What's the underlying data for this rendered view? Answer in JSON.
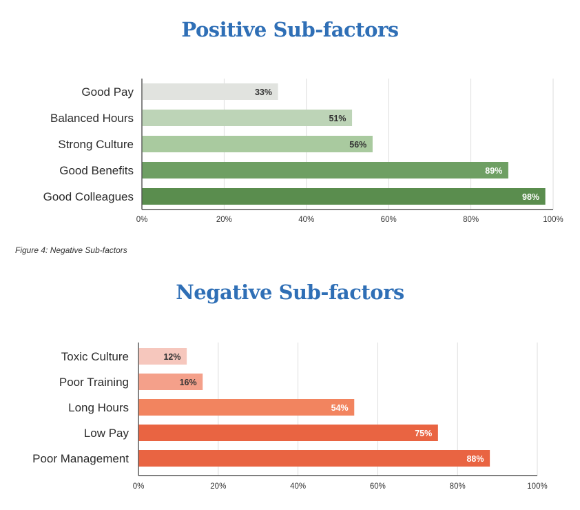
{
  "caption": "Figure 4: Negative Sub-factors",
  "chart_data": [
    {
      "type": "bar",
      "orientation": "horizontal",
      "title": "Positive Sub-factors",
      "categories": [
        "Good Pay",
        "Balanced Hours",
        "Strong Culture",
        "Good Benefits",
        "Good Colleagues"
      ],
      "values": [
        33,
        51,
        56,
        89,
        98
      ],
      "value_labels": [
        "33%",
        "51%",
        "56%",
        "89%",
        "98%"
      ],
      "bar_colors": [
        "#e1e3df",
        "#bdd4b7",
        "#a9ca9f",
        "#6e9f63",
        "#5a8d4e"
      ],
      "label_colors": [
        "#333333",
        "#333333",
        "#333333",
        "#ffffff",
        "#ffffff"
      ],
      "xlim": [
        0,
        100
      ],
      "xticks": [
        "0%",
        "20%",
        "40%",
        "60%",
        "80%",
        "100%"
      ],
      "xlabel": "",
      "ylabel": "",
      "grid": "vertical",
      "legend": "none"
    },
    {
      "type": "bar",
      "orientation": "horizontal",
      "title": "Negative Sub-factors",
      "categories": [
        "Toxic Culture",
        "Poor Training",
        "Long Hours",
        "Low Pay",
        "Poor Management"
      ],
      "values": [
        12,
        16,
        54,
        75,
        88
      ],
      "value_labels": [
        "12%",
        "16%",
        "54%",
        "75%",
        "88%"
      ],
      "bar_colors": [
        "#f6c7bd",
        "#f4a08a",
        "#f2845f",
        "#e96442",
        "#e96442"
      ],
      "label_colors": [
        "#333333",
        "#333333",
        "#ffffff",
        "#ffffff",
        "#ffffff"
      ],
      "xlim": [
        0,
        100
      ],
      "xticks": [
        "0%",
        "20%",
        "40%",
        "60%",
        "80%",
        "100%"
      ],
      "xlabel": "",
      "ylabel": "",
      "grid": "vertical",
      "legend": "none"
    }
  ]
}
